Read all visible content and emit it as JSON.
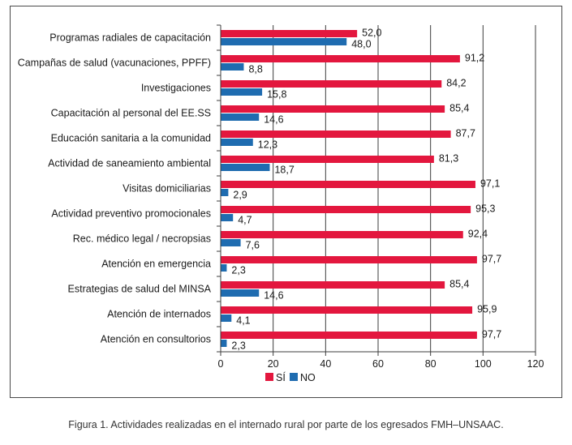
{
  "caption": "Figura 1. Actividades realizadas en el internado rural por parte de los egresados FMH–UNSAAC.",
  "chart_data": {
    "type": "bar",
    "orientation": "horizontal",
    "categories": [
      "Programas radiales de capacitación",
      "Campañas de salud (vacunaciones, PPFF)",
      "Investigaciones",
      "Capacitación al personal del EE.SS",
      "Educación sanitaria a la comunidad",
      "Actividad de saneamiento ambiental",
      "Visitas domiciliarias",
      "Actividad preventivo promocionales",
      "Rec. médico legal / necropsias",
      "Atención en emergencia",
      "Estrategias de salud del MINSA",
      "Atención de internados",
      "Atención en consultorios"
    ],
    "series": [
      {
        "name": "SÍ",
        "color": "#e3173e",
        "values": [
          52.0,
          91.2,
          84.2,
          85.4,
          87.7,
          81.3,
          97.1,
          95.3,
          92.4,
          97.7,
          85.4,
          95.9,
          97.7
        ],
        "labels": [
          "52,0",
          "91,2",
          "84,2",
          "85,4",
          "87,7",
          "81,3",
          "97,1",
          "95,3",
          "92,4",
          "97,7",
          "85,4",
          "95,9",
          "97,7"
        ]
      },
      {
        "name": "NO",
        "color": "#1f6cb0",
        "values": [
          48.0,
          8.8,
          15.8,
          14.6,
          12.3,
          18.7,
          2.9,
          4.7,
          7.6,
          2.3,
          14.6,
          4.1,
          2.3
        ],
        "labels": [
          "48,0",
          "8,8",
          "15,8",
          "14,6",
          "12,3",
          "18,7",
          "2,9",
          "4,7",
          "7,6",
          "2,3",
          "14,6",
          "4,1",
          "2,3"
        ]
      }
    ],
    "xlim": [
      0,
      120
    ],
    "xticks": [
      0,
      20,
      40,
      60,
      80,
      100,
      120
    ],
    "xticklabels": [
      "0",
      "20",
      "40",
      "60",
      "80",
      "100",
      "120"
    ],
    "grid": "vertical",
    "legend_position": "bottom-center"
  }
}
